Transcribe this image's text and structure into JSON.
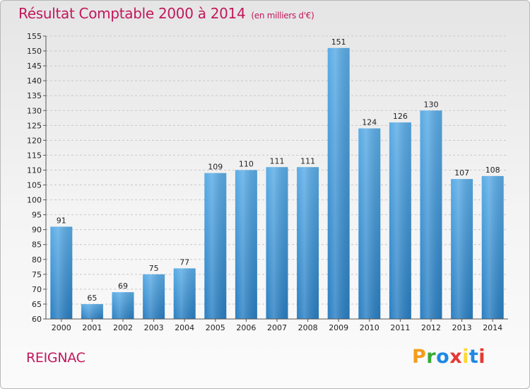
{
  "header": {
    "title": "Résultat Comptable 2000 à 2014",
    "unit": "(en milliers d'€)"
  },
  "commune": "REIGNAC",
  "logo": {
    "letters": [
      "P",
      "r",
      "o",
      "x",
      "i",
      "t",
      "i"
    ],
    "colors": [
      "#f59c1a",
      "#39a935",
      "#1e88e5",
      "#e53935",
      "#fdd835",
      "#1e88e5",
      "#e53935"
    ]
  },
  "chart_data": {
    "type": "bar",
    "title": "Résultat Comptable 2000 à 2014",
    "subtitle": "(en milliers d'€)",
    "xlabel": "",
    "ylabel": "",
    "categories": [
      "2000",
      "2001",
      "2002",
      "2003",
      "2004",
      "2005",
      "2006",
      "2007",
      "2008",
      "2009",
      "2010",
      "2011",
      "2012",
      "2013",
      "2014"
    ],
    "values": [
      91,
      65,
      69,
      75,
      77,
      109,
      110,
      111,
      111,
      151,
      124,
      126,
      130,
      107,
      108
    ],
    "ylim": [
      60,
      155
    ],
    "ytick_step": 5,
    "grid": true,
    "bar_color": "#3d94d8",
    "legend": "none"
  }
}
